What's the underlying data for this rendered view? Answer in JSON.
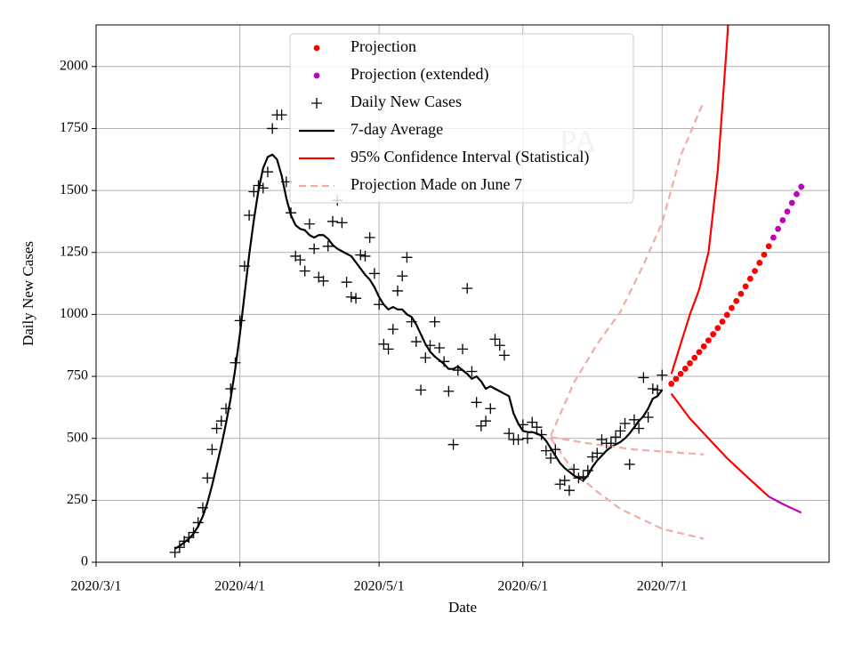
{
  "chart_data": {
    "type": "line",
    "title": "PA",
    "xlabel": "Date",
    "ylabel": "Daily New Cases",
    "xlim": [
      "2020/3/1",
      "2020/8/6"
    ],
    "xticks": [
      "2020/3/1",
      "2020/4/1",
      "2020/5/1",
      "2020/6/1",
      "2020/7/1"
    ],
    "ylim": [
      0,
      2168
    ],
    "yticks": [
      0,
      250,
      500,
      750,
      1000,
      1250,
      1500,
      1750,
      2000
    ],
    "grid": true,
    "legend": "upper center",
    "x": [
      "2020/3/18",
      "2020/3/19",
      "2020/3/20",
      "2020/3/21",
      "2020/3/22",
      "2020/3/23",
      "2020/3/24",
      "2020/3/25",
      "2020/3/26",
      "2020/3/27",
      "2020/3/28",
      "2020/3/29",
      "2020/3/30",
      "2020/3/31",
      "2020/4/1",
      "2020/4/2",
      "2020/4/3",
      "2020/4/4",
      "2020/4/5",
      "2020/4/6",
      "2020/4/7",
      "2020/4/8",
      "2020/4/9",
      "2020/4/10",
      "2020/4/11",
      "2020/4/12",
      "2020/4/13",
      "2020/4/14",
      "2020/4/15",
      "2020/4/16",
      "2020/4/17",
      "2020/4/18",
      "2020/4/19",
      "2020/4/20",
      "2020/4/21",
      "2020/4/22",
      "2020/4/23",
      "2020/4/24",
      "2020/4/25",
      "2020/4/26",
      "2020/4/27",
      "2020/4/28",
      "2020/4/29",
      "2020/4/30",
      "2020/5/1",
      "2020/5/2",
      "2020/5/3",
      "2020/5/4",
      "2020/5/5",
      "2020/5/6",
      "2020/5/7",
      "2020/5/8",
      "2020/5/9",
      "2020/5/10",
      "2020/5/11",
      "2020/5/12",
      "2020/5/13",
      "2020/5/14",
      "2020/5/15",
      "2020/5/16",
      "2020/5/17",
      "2020/5/18",
      "2020/5/19",
      "2020/5/20",
      "2020/5/21",
      "2020/5/22",
      "2020/5/23",
      "2020/5/24",
      "2020/5/25",
      "2020/5/26",
      "2020/5/27",
      "2020/5/28",
      "2020/5/29",
      "2020/5/30",
      "2020/5/31",
      "2020/6/1",
      "2020/6/2",
      "2020/6/3",
      "2020/6/4",
      "2020/6/5",
      "2020/6/6",
      "2020/6/7",
      "2020/6/8",
      "2020/6/9",
      "2020/6/10",
      "2020/6/11",
      "2020/6/12",
      "2020/6/13",
      "2020/6/14",
      "2020/6/15",
      "2020/6/16",
      "2020/6/17",
      "2020/6/18",
      "2020/6/19",
      "2020/6/20",
      "2020/6/21",
      "2020/6/22",
      "2020/6/23",
      "2020/6/24",
      "2020/6/25",
      "2020/6/26",
      "2020/6/27",
      "2020/6/28",
      "2020/6/29",
      "2020/6/30",
      "2020/7/1"
    ],
    "series": [
      {
        "name": "Projection",
        "kind": "dots",
        "color": "#ff0000",
        "x": [
          "2020/7/3",
          "2020/7/4",
          "2020/7/5",
          "2020/7/6",
          "2020/7/7",
          "2020/7/8",
          "2020/7/9",
          "2020/7/10",
          "2020/7/11",
          "2020/7/12",
          "2020/7/13",
          "2020/7/14",
          "2020/7/15",
          "2020/7/16",
          "2020/7/17",
          "2020/7/18",
          "2020/7/19",
          "2020/7/20",
          "2020/7/21",
          "2020/7/22",
          "2020/7/23",
          "2020/7/24"
        ],
        "values": [
          720,
          740,
          760,
          781,
          803,
          825,
          848,
          871,
          895,
          920,
          945,
          971,
          998,
          1026,
          1054,
          1083,
          1113,
          1144,
          1175,
          1208,
          1241,
          1275
        ]
      },
      {
        "name": "Projection (extended)",
        "kind": "dots",
        "color": "#bf00bf",
        "x": [
          "2020/7/25",
          "2020/7/26",
          "2020/7/27",
          "2020/7/28",
          "2020/7/29",
          "2020/7/30",
          "2020/7/31"
        ],
        "values": [
          1310,
          1345,
          1380,
          1415,
          1450,
          1485,
          1515
        ]
      },
      {
        "name": "Daily New Cases",
        "kind": "plus",
        "color": "#000000",
        "values": [
          40,
          60,
          85,
          100,
          120,
          160,
          220,
          340,
          455,
          540,
          570,
          620,
          700,
          805,
          975,
          1195,
          1400,
          1495,
          1520,
          1510,
          1575,
          1750,
          1805,
          1805,
          1535,
          1410,
          1235,
          1220,
          1175,
          1365,
          1265,
          1150,
          1135,
          1275,
          1375,
          1460,
          1370,
          1130,
          1070,
          1065,
          1240,
          1235,
          1310,
          1165,
          1040,
          880,
          860,
          940,
          1095,
          1155,
          1230,
          970,
          890,
          695,
          825,
          875,
          970,
          865,
          810,
          690,
          475,
          775,
          860,
          1105,
          770,
          645,
          550,
          570,
          620,
          900,
          875,
          835,
          520,
          495,
          495,
          555,
          500,
          565,
          545,
          515,
          450,
          420,
          455,
          315,
          330,
          290,
          375,
          340,
          345,
          370,
          425,
          440,
          495,
          480,
          480,
          505,
          530,
          560,
          395,
          575,
          540,
          745,
          585,
          700,
          695,
          755
        ]
      },
      {
        "name": "7-day Average",
        "kind": "line",
        "color": "#000000",
        "values": [
          55,
          65,
          80,
          95,
          115,
          145,
          185,
          240,
          310,
          390,
          470,
          560,
          660,
          780,
          920,
          1080,
          1240,
          1380,
          1500,
          1590,
          1635,
          1645,
          1625,
          1560,
          1470,
          1400,
          1360,
          1345,
          1340,
          1320,
          1310,
          1320,
          1320,
          1305,
          1280,
          1265,
          1255,
          1245,
          1235,
          1210,
          1185,
          1160,
          1140,
          1110,
          1070,
          1040,
          1020,
          1030,
          1020,
          1020,
          1000,
          990,
          960,
          920,
          880,
          850,
          830,
          815,
          800,
          780,
          780,
          790,
          775,
          760,
          740,
          750,
          730,
          700,
          710,
          700,
          690,
          680,
          670,
          600,
          560,
          530,
          525,
          525,
          520,
          510,
          490,
          460,
          430,
          400,
          380,
          365,
          350,
          340,
          330,
          350,
          385,
          410,
          430,
          450,
          465,
          475,
          485,
          500,
          520,
          545,
          570,
          590,
          620,
          660,
          670,
          695
        ]
      },
      {
        "name": "95% Confidence Interval (Statistical)",
        "kind": "line",
        "color": "#ff0000",
        "x": [
          "2020/7/3",
          "2020/7/5",
          "2020/7/7",
          "2020/7/9",
          "2020/7/11",
          "2020/7/13",
          "2020/7/15",
          "2020/7/16"
        ],
        "values": [
          760,
          880,
          1000,
          1100,
          1250,
          1580,
          2100,
          2400
        ]
      },
      {
        "kind": "line",
        "color": "#ff0000",
        "x": [
          "2020/7/3",
          "2020/7/7",
          "2020/7/11",
          "2020/7/15",
          "2020/7/19",
          "2020/7/24"
        ],
        "values": [
          680,
          580,
          500,
          420,
          350,
          265
        ]
      },
      {
        "kind": "line",
        "color": "#bf00bf",
        "x": [
          "2020/7/24",
          "2020/7/27",
          "2020/7/31"
        ],
        "values": [
          265,
          235,
          200
        ]
      },
      {
        "name": "Projection Made on June 7",
        "kind": "dashed",
        "color": "#f5aaa4",
        "x": [
          "2020/6/7",
          "2020/6/12",
          "2020/6/17",
          "2020/6/22",
          "2020/6/27",
          "2020/7/1",
          "2020/7/5",
          "2020/7/10"
        ],
        "values": [
          510,
          725,
          880,
          1010,
          1200,
          1370,
          1640,
          1860
        ]
      },
      {
        "kind": "dashed",
        "color": "#f5aaa4",
        "x": [
          "2020/6/7",
          "2020/6/15",
          "2020/6/25",
          "2020/7/10"
        ],
        "values": [
          505,
          480,
          455,
          435
        ]
      },
      {
        "kind": "dashed",
        "color": "#f5aaa4",
        "x": [
          "2020/6/7",
          "2020/6/12",
          "2020/6/17",
          "2020/6/22",
          "2020/7/1",
          "2020/7/10"
        ],
        "values": [
          500,
          365,
          285,
          215,
          135,
          95
        ]
      }
    ]
  }
}
